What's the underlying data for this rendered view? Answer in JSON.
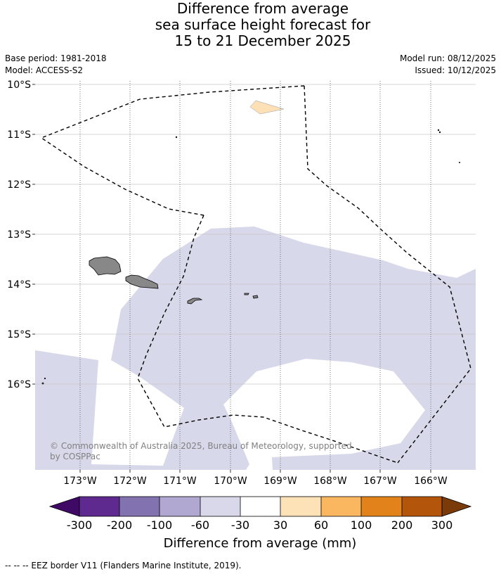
{
  "title": {
    "line1": "Difference from average",
    "line2": "sea surface height forecast for",
    "line3": "15 to 21 December 2025"
  },
  "meta": {
    "base_period": "Base period: 1981-2018",
    "model": "Model: ACCESS-S2",
    "model_run": "Model run: 08/12/2025",
    "issued": "Issued: 10/12/2025"
  },
  "map": {
    "lat_labels": [
      "10°S",
      "11°S",
      "12°S",
      "13°S",
      "14°S",
      "15°S",
      "16°S"
    ],
    "lon_labels": [
      "173°W",
      "172°W",
      "171°W",
      "170°W",
      "169°W",
      "168°W",
      "167°W",
      "166°W"
    ],
    "copyright_line1": "© Commonwealth of Australia 2025, Bureau of Meteorology, supported",
    "copyright_line2": "by COSPPac",
    "anomaly_fill_color": "#d7d8ea",
    "positive_patch_color": "#fde0b6",
    "land_color": "#888888"
  },
  "colorbar": {
    "title": "Difference from average (mm)",
    "tick_labels": [
      "-300",
      "-200",
      "-100",
      "-60",
      "-30",
      "30",
      "60",
      "100",
      "200",
      "300"
    ],
    "colors": [
      "#3f0a66",
      "#5e2a8f",
      "#8372b0",
      "#b0a8d0",
      "#d8d8ea",
      "#ffffff",
      "#fde1b7",
      "#fbb75f",
      "#e2821b",
      "#b4550c",
      "#7a3a09"
    ]
  },
  "footer": {
    "legend": "--  --  -- EEZ border V11 (Flanders Marine Institute, 2019)."
  }
}
